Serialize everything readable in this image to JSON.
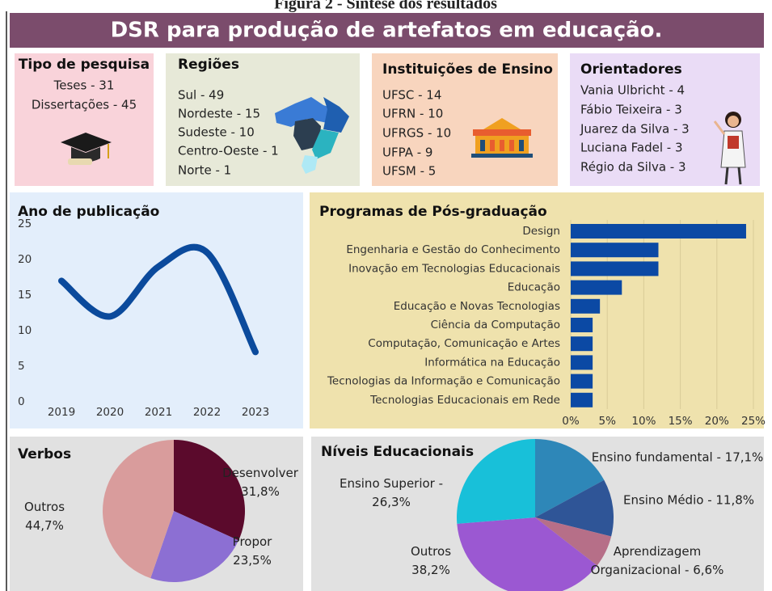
{
  "caption": "Figura 2 - Síntese dos resultados",
  "title": "DSR para produção de artefatos em educação.",
  "panels": [
    {
      "title": "Tipo de pesquisa",
      "items": [
        "Teses - 31",
        "Dissertações - 45"
      ]
    },
    {
      "title": "Regiões",
      "items": [
        "Sul - 49",
        "Nordeste - 15",
        "Sudeste - 10",
        "Centro-Oeste - 1",
        "Norte - 1"
      ]
    },
    {
      "title": "Instituições de Ensino",
      "items": [
        "UFSC - 14",
        "UFRN - 10",
        "UFRGS - 10",
        "UFPA - 9",
        "UFSM - 5"
      ]
    },
    {
      "title": "Orientadores",
      "items": [
        "Vania Ulbricht - 4",
        "Fábio Teixeira - 3",
        "Juarez da Silva - 3",
        "Luciana Fadel - 3",
        "Régio da Silva - 3"
      ]
    }
  ],
  "chart_data": [
    {
      "type": "line",
      "title": "Ano de publicação",
      "x": [
        2019,
        2020,
        2021,
        2022,
        2023
      ],
      "values": [
        17,
        12,
        19,
        21,
        7
      ],
      "color": "#0b4a9c",
      "xlim": [
        2018.1,
        2023.9
      ],
      "xticks": [
        2019,
        2020,
        2021,
        2022,
        2023
      ],
      "ylim": [
        0,
        25
      ],
      "yticks": [
        0,
        5,
        10,
        15,
        20,
        25
      ]
    },
    {
      "type": "hbar",
      "title": "Programas de Pós-graduação",
      "categories": [
        "Design",
        "Engenharia e Gestão do Conhecimento",
        "Inovação em Tecnologias Educacionais",
        "Educação",
        "Educação e Novas Tecnologias",
        "Ciência da Computação",
        "Computação, Comunicação e Artes",
        "Informática na Educação",
        "Tecnologias da Informação e Comunicação",
        "Tecnologias Educacionais em Rede"
      ],
      "values": [
        24,
        12,
        12,
        7,
        4,
        3,
        3,
        3,
        3,
        3
      ],
      "color": "#0b49a4",
      "xlim": [
        0,
        25
      ],
      "xticks": [
        {
          "value": 0,
          "label": "0%"
        },
        {
          "value": 5,
          "label": "5%"
        },
        {
          "value": 10,
          "label": "10%"
        },
        {
          "value": 15,
          "label": "15%"
        },
        {
          "value": 20,
          "label": "20%"
        },
        {
          "value": 25,
          "label": "25%"
        }
      ],
      "grid": true
    },
    {
      "type": "pie",
      "title": "Verbos",
      "values": [
        31.8,
        23.5,
        44.7
      ],
      "value_labels": [
        "Desenvolver\n31,8%",
        "Propor\n23,5%",
        "Outros\n44,7%"
      ],
      "colors": [
        "#5b0a2c",
        "#8c6fd3",
        "#d99c9c"
      ]
    },
    {
      "type": "pie",
      "title": "Níveis Educacionais",
      "values": [
        17.1,
        11.8,
        6.6,
        38.2,
        26.3
      ],
      "value_labels": [
        "Ensino fundamental - 17,1%",
        "Ensino Médio - 11,8%",
        "Aprendizagem\nOrganizacional - 6,6%",
        "Outros\n38,2%",
        "Ensino Superior -\n26,3%"
      ],
      "colors": [
        "#2e87b8",
        "#2f5597",
        "#b66f88",
        "#9b58d2",
        "#18c0d9"
      ]
    }
  ]
}
